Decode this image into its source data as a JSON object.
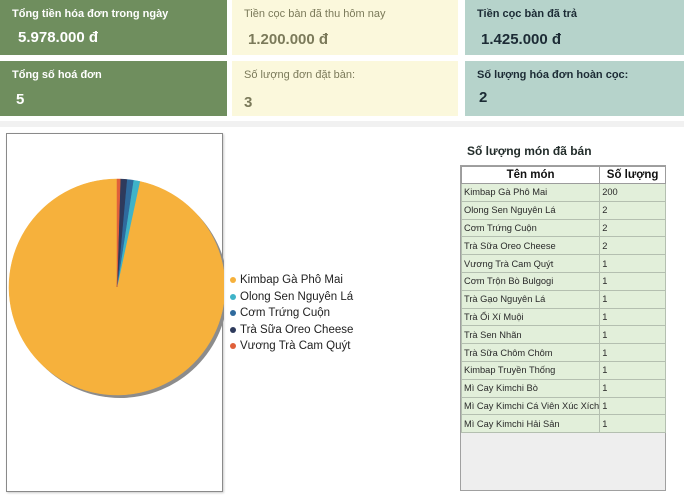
{
  "cards": {
    "total_amount": {
      "label": "Tổng tiền hóa đơn trong ngày",
      "value": "5.978.000 đ"
    },
    "deposit_today": {
      "label": "Tiền cọc bàn đã thu hôm nay",
      "value": "1.200.000 đ"
    },
    "deposit_paid": {
      "label": "Tiền cọc bàn đã trả",
      "value": "1.425.000 đ"
    },
    "invoice_count": {
      "label": "Tổng số hoá đơn",
      "value": "5"
    },
    "booking_count": {
      "label": "Số lượng đơn đặt bàn:",
      "value": "3"
    },
    "refund_count": {
      "label": "Số lượng hóa đơn hoàn cọc:",
      "value": "2"
    }
  },
  "colors": {
    "green": "#6f8e5e",
    "cream": "#fbf8dc",
    "teal": "#b6d3cb",
    "row_bg": "#e2efda"
  },
  "chart_data": {
    "type": "pie",
    "categories": [
      "Kimbap Gà Phô Mai",
      "Olong Sen Nguyên Lá",
      "Cơm Trứng Cuộn",
      "Trà Sữa Oreo Cheese",
      "Vương Trà Cam Quýt"
    ],
    "values": [
      200,
      2,
      2,
      2,
      1
    ],
    "colors": [
      "#f6b13c",
      "#3fb3c8",
      "#2f6a9d",
      "#2e3a5c",
      "#e0603a"
    ],
    "legend_position": "right"
  },
  "table": {
    "title": "Số lượng món đã bán",
    "headers": [
      "Tên món",
      "Số lượng"
    ],
    "rows": [
      [
        "Kimbap Gà Phô Mai",
        "200"
      ],
      [
        "Olong Sen Nguyên Lá",
        "2"
      ],
      [
        "Cơm Trứng Cuộn",
        "2"
      ],
      [
        "Trà Sữa Oreo Cheese",
        "2"
      ],
      [
        "Vương Trà Cam Quýt",
        "1"
      ],
      [
        "Cơm Trộn Bò Bulgogi",
        "1"
      ],
      [
        "Trà Gạo Nguyên Lá",
        "1"
      ],
      [
        "Trà Ổi Xí Muội",
        "1"
      ],
      [
        "Trà Sen Nhãn",
        "1"
      ],
      [
        "Trà Sữa Chôm Chôm",
        "1"
      ],
      [
        "Kimbap Truyền Thống",
        "1"
      ],
      [
        "Mì Cay Kimchi Bò",
        "1"
      ],
      [
        "Mì Cay Kimchi Cá Viên Xúc Xích",
        "1"
      ],
      [
        "Mì Cay Kimchi Hải Sản",
        "1"
      ]
    ]
  }
}
